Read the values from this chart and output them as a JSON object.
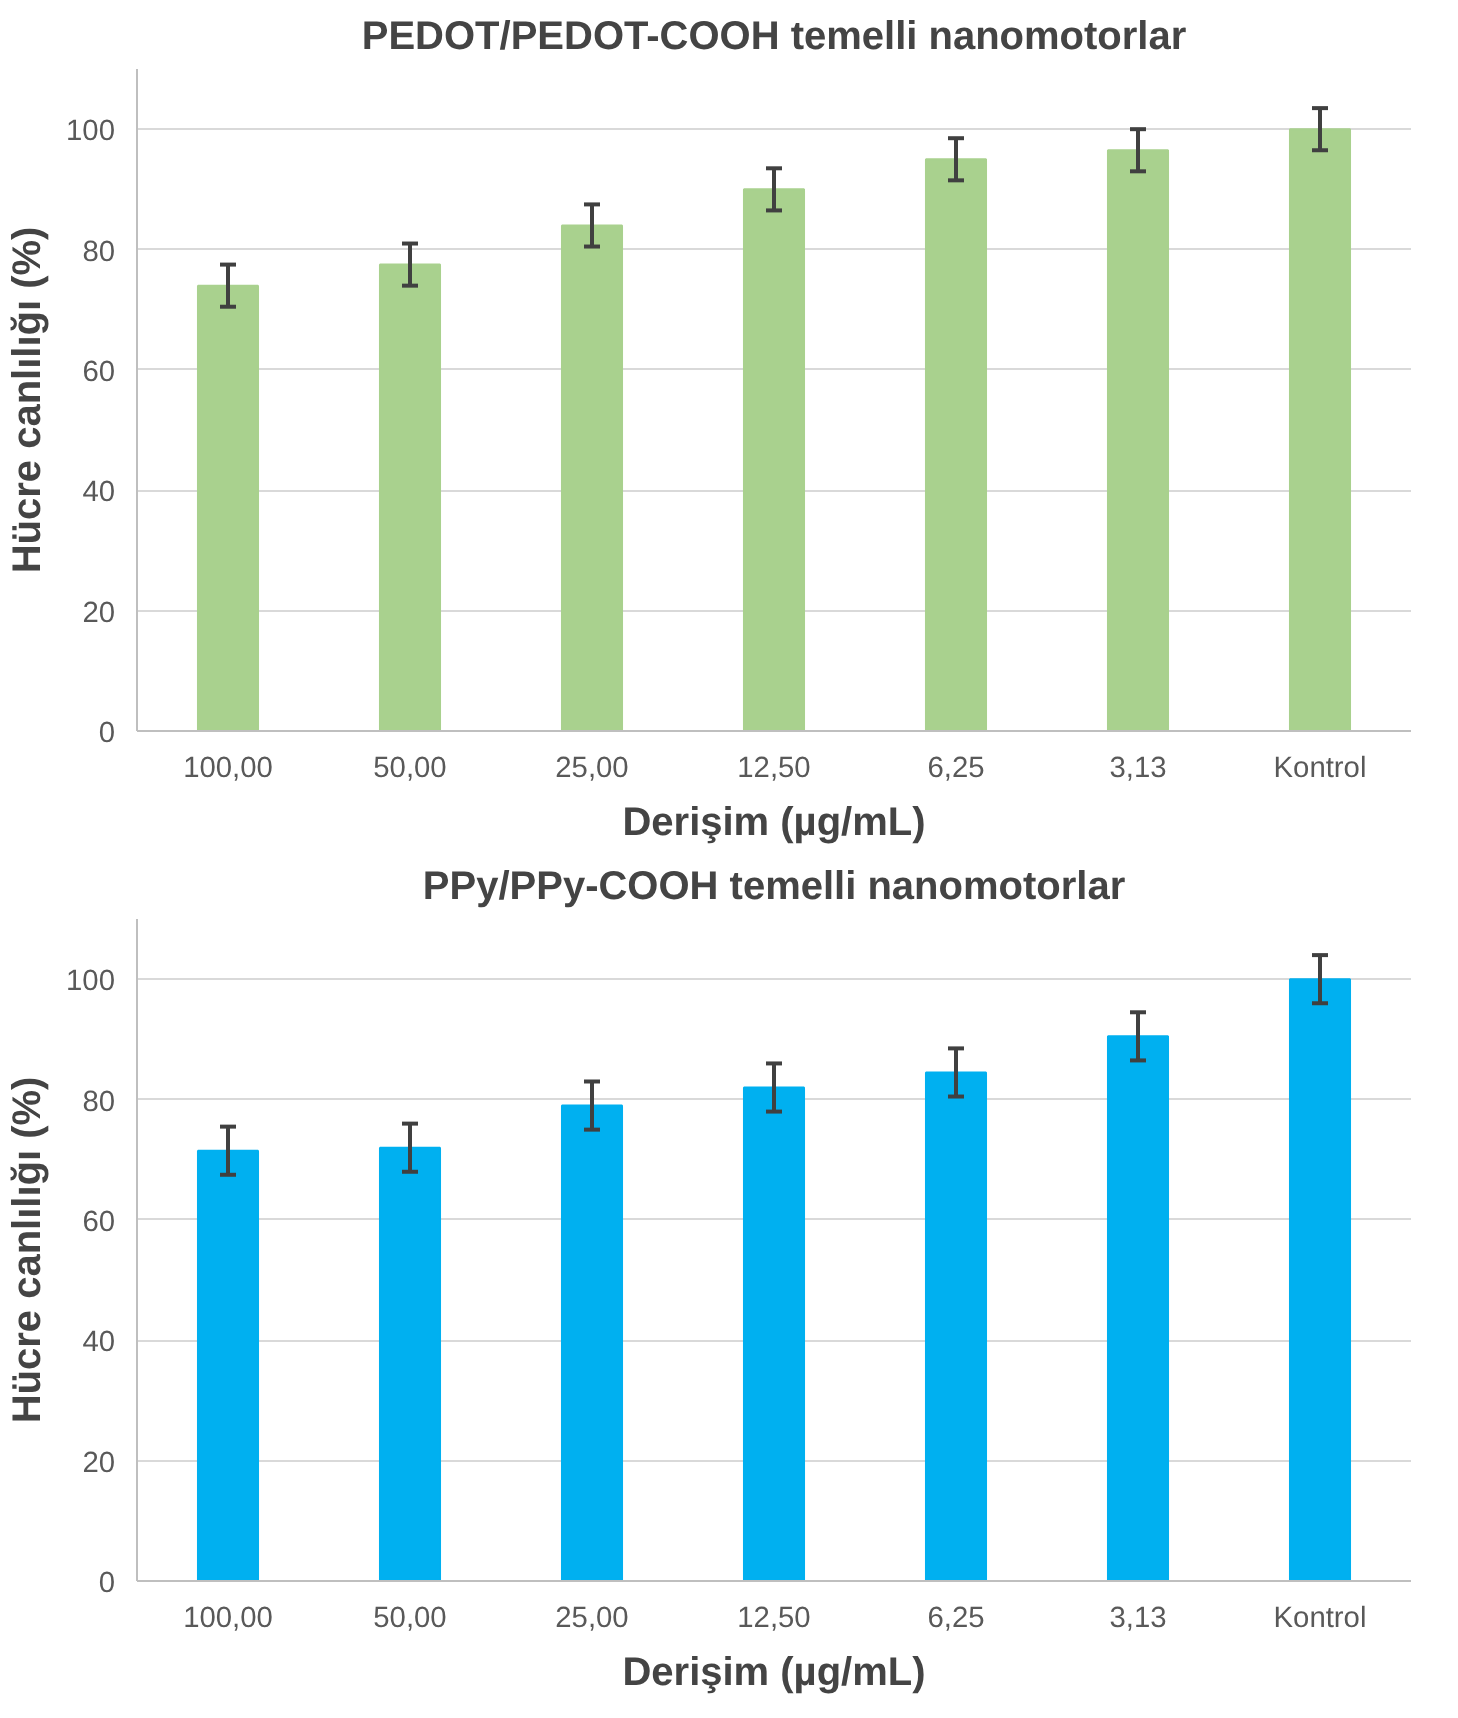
{
  "chart_data": [
    {
      "type": "bar",
      "title": "PEDOT/PEDOT-COOH temelli nanomotorlar",
      "xlabel": "Derişim (µg/mL)",
      "ylabel": "Hücre canlılığı (%)",
      "categories": [
        "100,00",
        "50,00",
        "25,00",
        "12,50",
        "6,25",
        "3,13",
        "Kontrol"
      ],
      "series": [
        {
          "color": "#a9d18e",
          "values": [
            74,
            77.5,
            84,
            90,
            95,
            96.5,
            100
          ],
          "errors": [
            3.5,
            3.5,
            3.5,
            3.5,
            3.5,
            3.5,
            3.5
          ]
        }
      ],
      "ylim": [
        0,
        110
      ],
      "yticks": [
        0,
        20,
        40,
        60,
        80,
        100
      ],
      "grid": "y"
    },
    {
      "type": "bar",
      "title": "PPy/PPy-COOH temelli nanomotorlar",
      "xlabel": "Derişim (µg/mL)",
      "ylabel": "Hücre canlılığı (%)",
      "categories": [
        "100,00",
        "50,00",
        "25,00",
        "12,50",
        "6,25",
        "3,13",
        "Kontrol"
      ],
      "series": [
        {
          "color": "#00b0f0",
          "values": [
            71.5,
            72,
            79,
            82,
            84.5,
            90.5,
            100
          ],
          "errors": [
            4,
            4,
            4,
            4,
            4,
            4,
            4
          ]
        }
      ],
      "ylim": [
        0,
        110
      ],
      "yticks": [
        0,
        20,
        40,
        60,
        80,
        100
      ],
      "grid": "y"
    }
  ]
}
